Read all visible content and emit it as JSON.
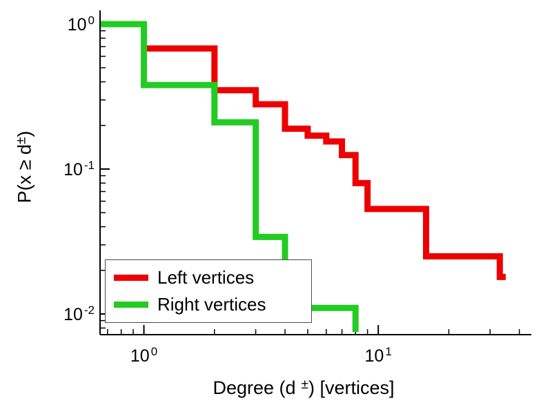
{
  "chart_data": {
    "type": "line",
    "subtype": "step-ccdf",
    "title": "",
    "x_scale": "log",
    "y_scale": "log",
    "grid": false,
    "xlabel": {
      "text": "Degree (d ±) [vertices]",
      "pre": "Degree (d",
      "sup": "±",
      "post": ") [vertices]"
    },
    "ylabel": {
      "text": "P(x ≥ d ±)",
      "pre": "P(x ≥ d",
      "sup": "±",
      "post": ")"
    },
    "xlim": [
      0.65,
      45
    ],
    "ylim": [
      0.0072,
      1.245
    ],
    "axis_color": "#000000",
    "x_major_ticks": [
      {
        "value": 1,
        "base": "10",
        "exp": "0"
      },
      {
        "value": 10,
        "base": "10",
        "exp": "1"
      }
    ],
    "y_major_ticks": [
      {
        "value": 1,
        "base": "10",
        "exp": "0"
      },
      {
        "value": 0.1,
        "base": "10",
        "exp": "-1"
      },
      {
        "value": 0.01,
        "base": "10",
        "exp": "-2"
      }
    ],
    "x_minor_ticks": [
      0.7,
      0.8,
      0.9,
      2,
      3,
      4,
      5,
      6,
      7,
      8,
      9,
      20,
      30,
      40
    ],
    "y_minor_ticks": [
      0.9,
      0.8,
      0.7,
      0.6,
      0.5,
      0.4,
      0.3,
      0.2,
      0.09,
      0.08,
      0.07,
      0.06,
      0.05,
      0.04,
      0.03,
      0.02,
      0.009,
      0.008
    ],
    "series": [
      {
        "name": "Left vertices",
        "color": "#ee0000",
        "linewidth": 9,
        "steps": [
          [
            0.65,
            1.0
          ],
          [
            1,
            0.68
          ],
          [
            2,
            0.35
          ],
          [
            3,
            0.28
          ],
          [
            4,
            0.19
          ],
          [
            5,
            0.17
          ],
          [
            6,
            0.155
          ],
          [
            7,
            0.125
          ],
          [
            8,
            0.08
          ],
          [
            9,
            0.053
          ],
          [
            16,
            0.025
          ],
          [
            33,
            0.018
          ]
        ],
        "x_end": 35
      },
      {
        "name": "Right vertices",
        "color": "#22cc22",
        "linewidth": 9,
        "steps": [
          [
            0.65,
            1.0
          ],
          [
            1,
            0.38
          ],
          [
            2,
            0.21
          ],
          [
            3,
            0.034
          ],
          [
            4,
            0.011
          ],
          [
            8,
            0.0075
          ]
        ],
        "x_end": 8
      }
    ],
    "legend": {
      "entries": [
        "Left vertices",
        "Right vertices"
      ],
      "position": "lower-left",
      "border_color": "#4a4a4a",
      "background": "#ffffff"
    }
  }
}
